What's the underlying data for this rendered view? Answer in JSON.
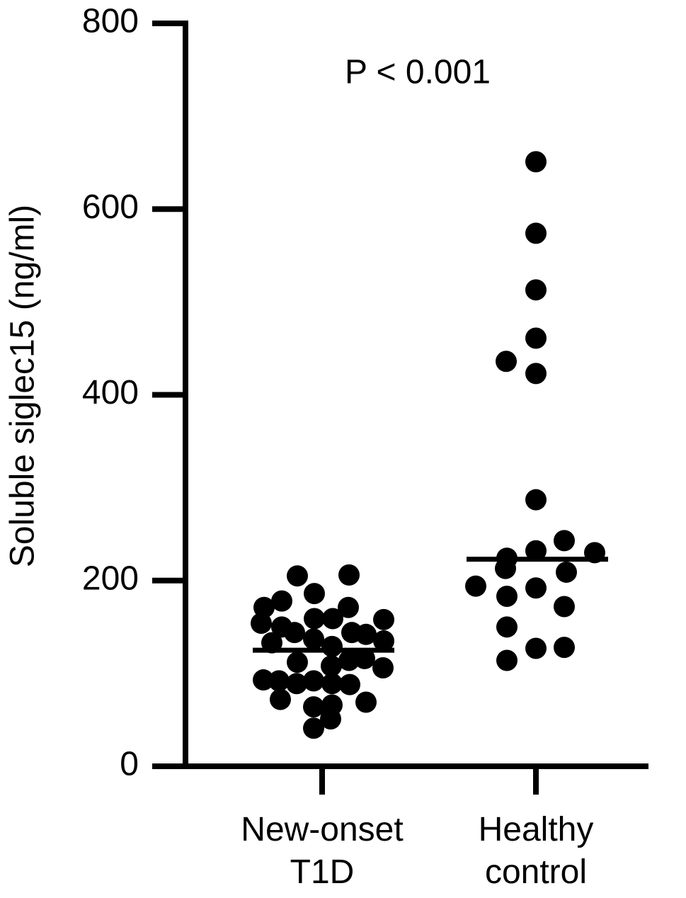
{
  "chart_data": {
    "type": "dot",
    "y_label": "Soluble siglec15 (ng/ml)",
    "annotation": "P < 0.001",
    "categories": [
      "New-onset T1D",
      "Healthy control"
    ],
    "values": [
      [
        205,
        206,
        178,
        171,
        186,
        171,
        154,
        159,
        159,
        158,
        150,
        144,
        144,
        142,
        137,
        133,
        135,
        129,
        112,
        114,
        116,
        108,
        106,
        93,
        92,
        89,
        92,
        89,
        88,
        72,
        64,
        66,
        69,
        51,
        41
      ],
      [
        651,
        574,
        513,
        461,
        436,
        423,
        287,
        243,
        232,
        230,
        224,
        194,
        213,
        209,
        192,
        183,
        172,
        150,
        127,
        128,
        114
      ]
    ],
    "medians": [
      125,
      223
    ],
    "color": "#000000",
    "ylim": [
      0,
      800
    ],
    "yticks": [
      0,
      200,
      400,
      600,
      800
    ]
  }
}
